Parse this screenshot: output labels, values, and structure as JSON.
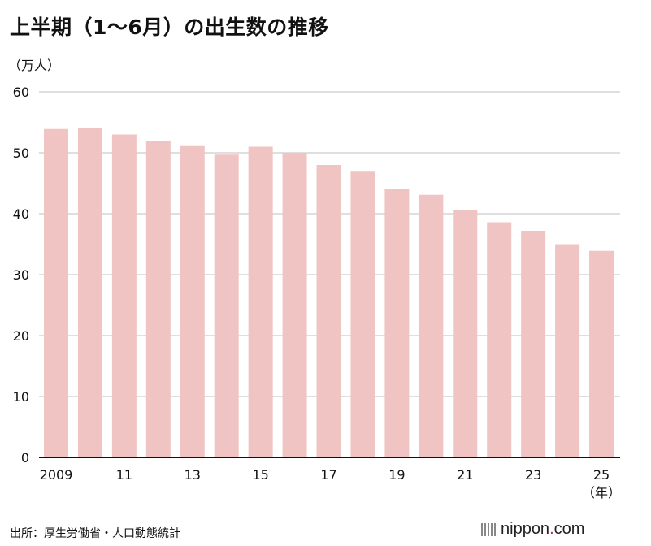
{
  "title": "上半期（1〜6月）の出生数の推移",
  "source": "出所：厚生労働省・人口動態統計",
  "logo": {
    "name": "nippon",
    "dot": ".",
    "tld": "com"
  },
  "colors": {
    "bar": "#efc4c2",
    "grid": "#cccccc",
    "axis": "#111111"
  },
  "chart_data": {
    "type": "bar",
    "ylabel": "（万人）",
    "xlabel": "（年）",
    "ylim": [
      0,
      60
    ],
    "yticks": [
      0,
      10,
      20,
      30,
      40,
      50,
      60
    ],
    "grid": true,
    "categories": [
      "2009",
      "2010",
      "2011",
      "2012",
      "2013",
      "2014",
      "2015",
      "2016",
      "2017",
      "2018",
      "2019",
      "2020",
      "2021",
      "2022",
      "2023",
      "2024",
      "2025"
    ],
    "tick_labels": [
      "2009",
      "",
      "11",
      "",
      "13",
      "",
      "15",
      "",
      "17",
      "",
      "19",
      "",
      "21",
      "",
      "23",
      "",
      "25"
    ],
    "values": [
      53.9,
      54.0,
      53.0,
      52.0,
      51.1,
      49.7,
      51.0,
      50.0,
      48.0,
      46.9,
      44.0,
      43.1,
      40.6,
      38.6,
      37.2,
      35.0,
      33.9
    ]
  }
}
